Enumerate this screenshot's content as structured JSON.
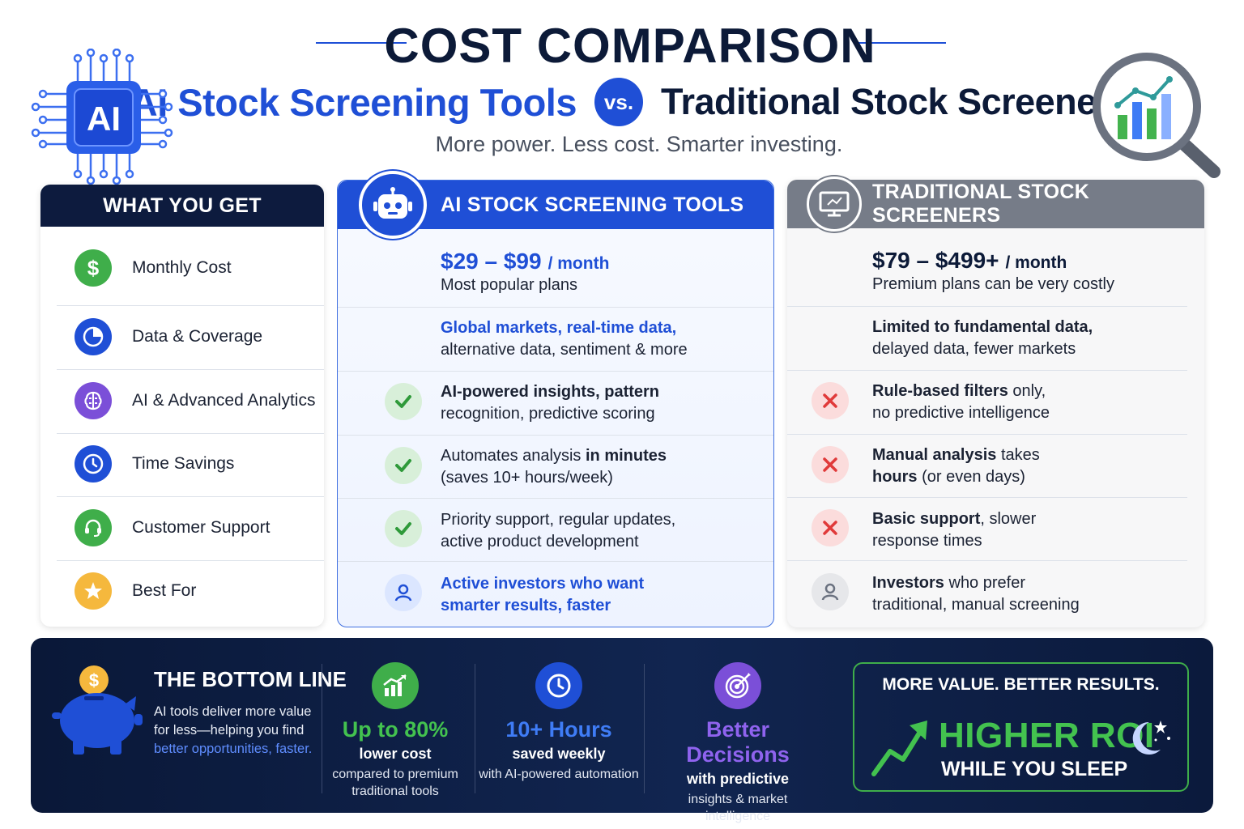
{
  "header": {
    "title": "COST COMPARISON",
    "left_title": "AI Stock Screening Tools",
    "vs": "vs.",
    "right_title": "Traditional Stock Screeners",
    "tagline": "More power. Less cost. Smarter investing.",
    "chip_label": "AI"
  },
  "features": {
    "heading": "WHAT YOU GET",
    "items": [
      {
        "label": "Monthly Cost",
        "icon": "dollar-icon"
      },
      {
        "label": "Data & Coverage",
        "icon": "pie-chart-icon"
      },
      {
        "label": "AI & Advanced Analytics",
        "icon": "brain-icon"
      },
      {
        "label": "Time Savings",
        "icon": "clock-icon"
      },
      {
        "label": "Customer Support",
        "icon": "headset-icon"
      },
      {
        "label": "Best For",
        "icon": "star-icon"
      }
    ]
  },
  "ai_tools": {
    "heading": "AI STOCK SCREENING TOOLS",
    "price": "$29 – $99",
    "price_unit": "/ month",
    "price_note": "Most popular plans",
    "data_bold": "Global markets, real-time data,",
    "data_rest": "alternative data, sentiment & more",
    "ai_bold": "AI-powered insights, pattern",
    "ai_rest": "recognition, predictive scoring",
    "time_a": "Automates analysis ",
    "time_bold": "in minutes",
    "time_rest": "(saves 10+ hours/week)",
    "support_1": "Priority support, regular updates,",
    "support_2": "active product development",
    "best_1": "Active investors who want",
    "best_2": "smarter results, faster"
  },
  "traditional": {
    "heading": "TRADITIONAL STOCK SCREENERS",
    "price": "$79 – $499+",
    "price_unit": "/ month",
    "price_note": "Premium plans can be very costly",
    "data_bold": "Limited to fundamental data,",
    "data_rest": "delayed data, fewer markets",
    "ai_bold": "Rule-based filters",
    "ai_tail": " only,",
    "ai_rest": "no predictive intelligence",
    "time_bold": "Manual analysis",
    "time_tail": " takes",
    "time_bold2": "hours",
    "time_rest": " (or even days)",
    "support_bold": "Basic support",
    "support_tail": ", slower",
    "support_rest": "response times",
    "best_bold": "Investors",
    "best_tail": " who prefer",
    "best_rest": "traditional, manual screening"
  },
  "bottom": {
    "title": "THE BOTTOM LINE",
    "text": "AI tools deliver more value for less—helping you find ",
    "link": "better opportunities, faster.",
    "stats": [
      {
        "head": "Up to 80%",
        "sub1": "lower cost",
        "sub2": "compared to premium traditional tools",
        "color": "#43c24f"
      },
      {
        "head": "10+ Hours",
        "sub1": "saved weekly",
        "sub2": "with AI-powered automation",
        "color": "#3f7cf5"
      },
      {
        "head": "Better Decisions",
        "sub1": "with predictive",
        "sub2": "insights & market intelligence",
        "color": "#8f63ee"
      }
    ],
    "roi_top": "MORE VALUE. BETTER RESULTS.",
    "roi_big": "HIGHER ROI",
    "roi_sub": "WHILE YOU SLEEP"
  },
  "colors": {
    "brand_blue": "#1f4fd6",
    "navy": "#0d1b3e",
    "gray_head": "#767c88",
    "green": "#43c24f",
    "red": "#e03a3a"
  }
}
